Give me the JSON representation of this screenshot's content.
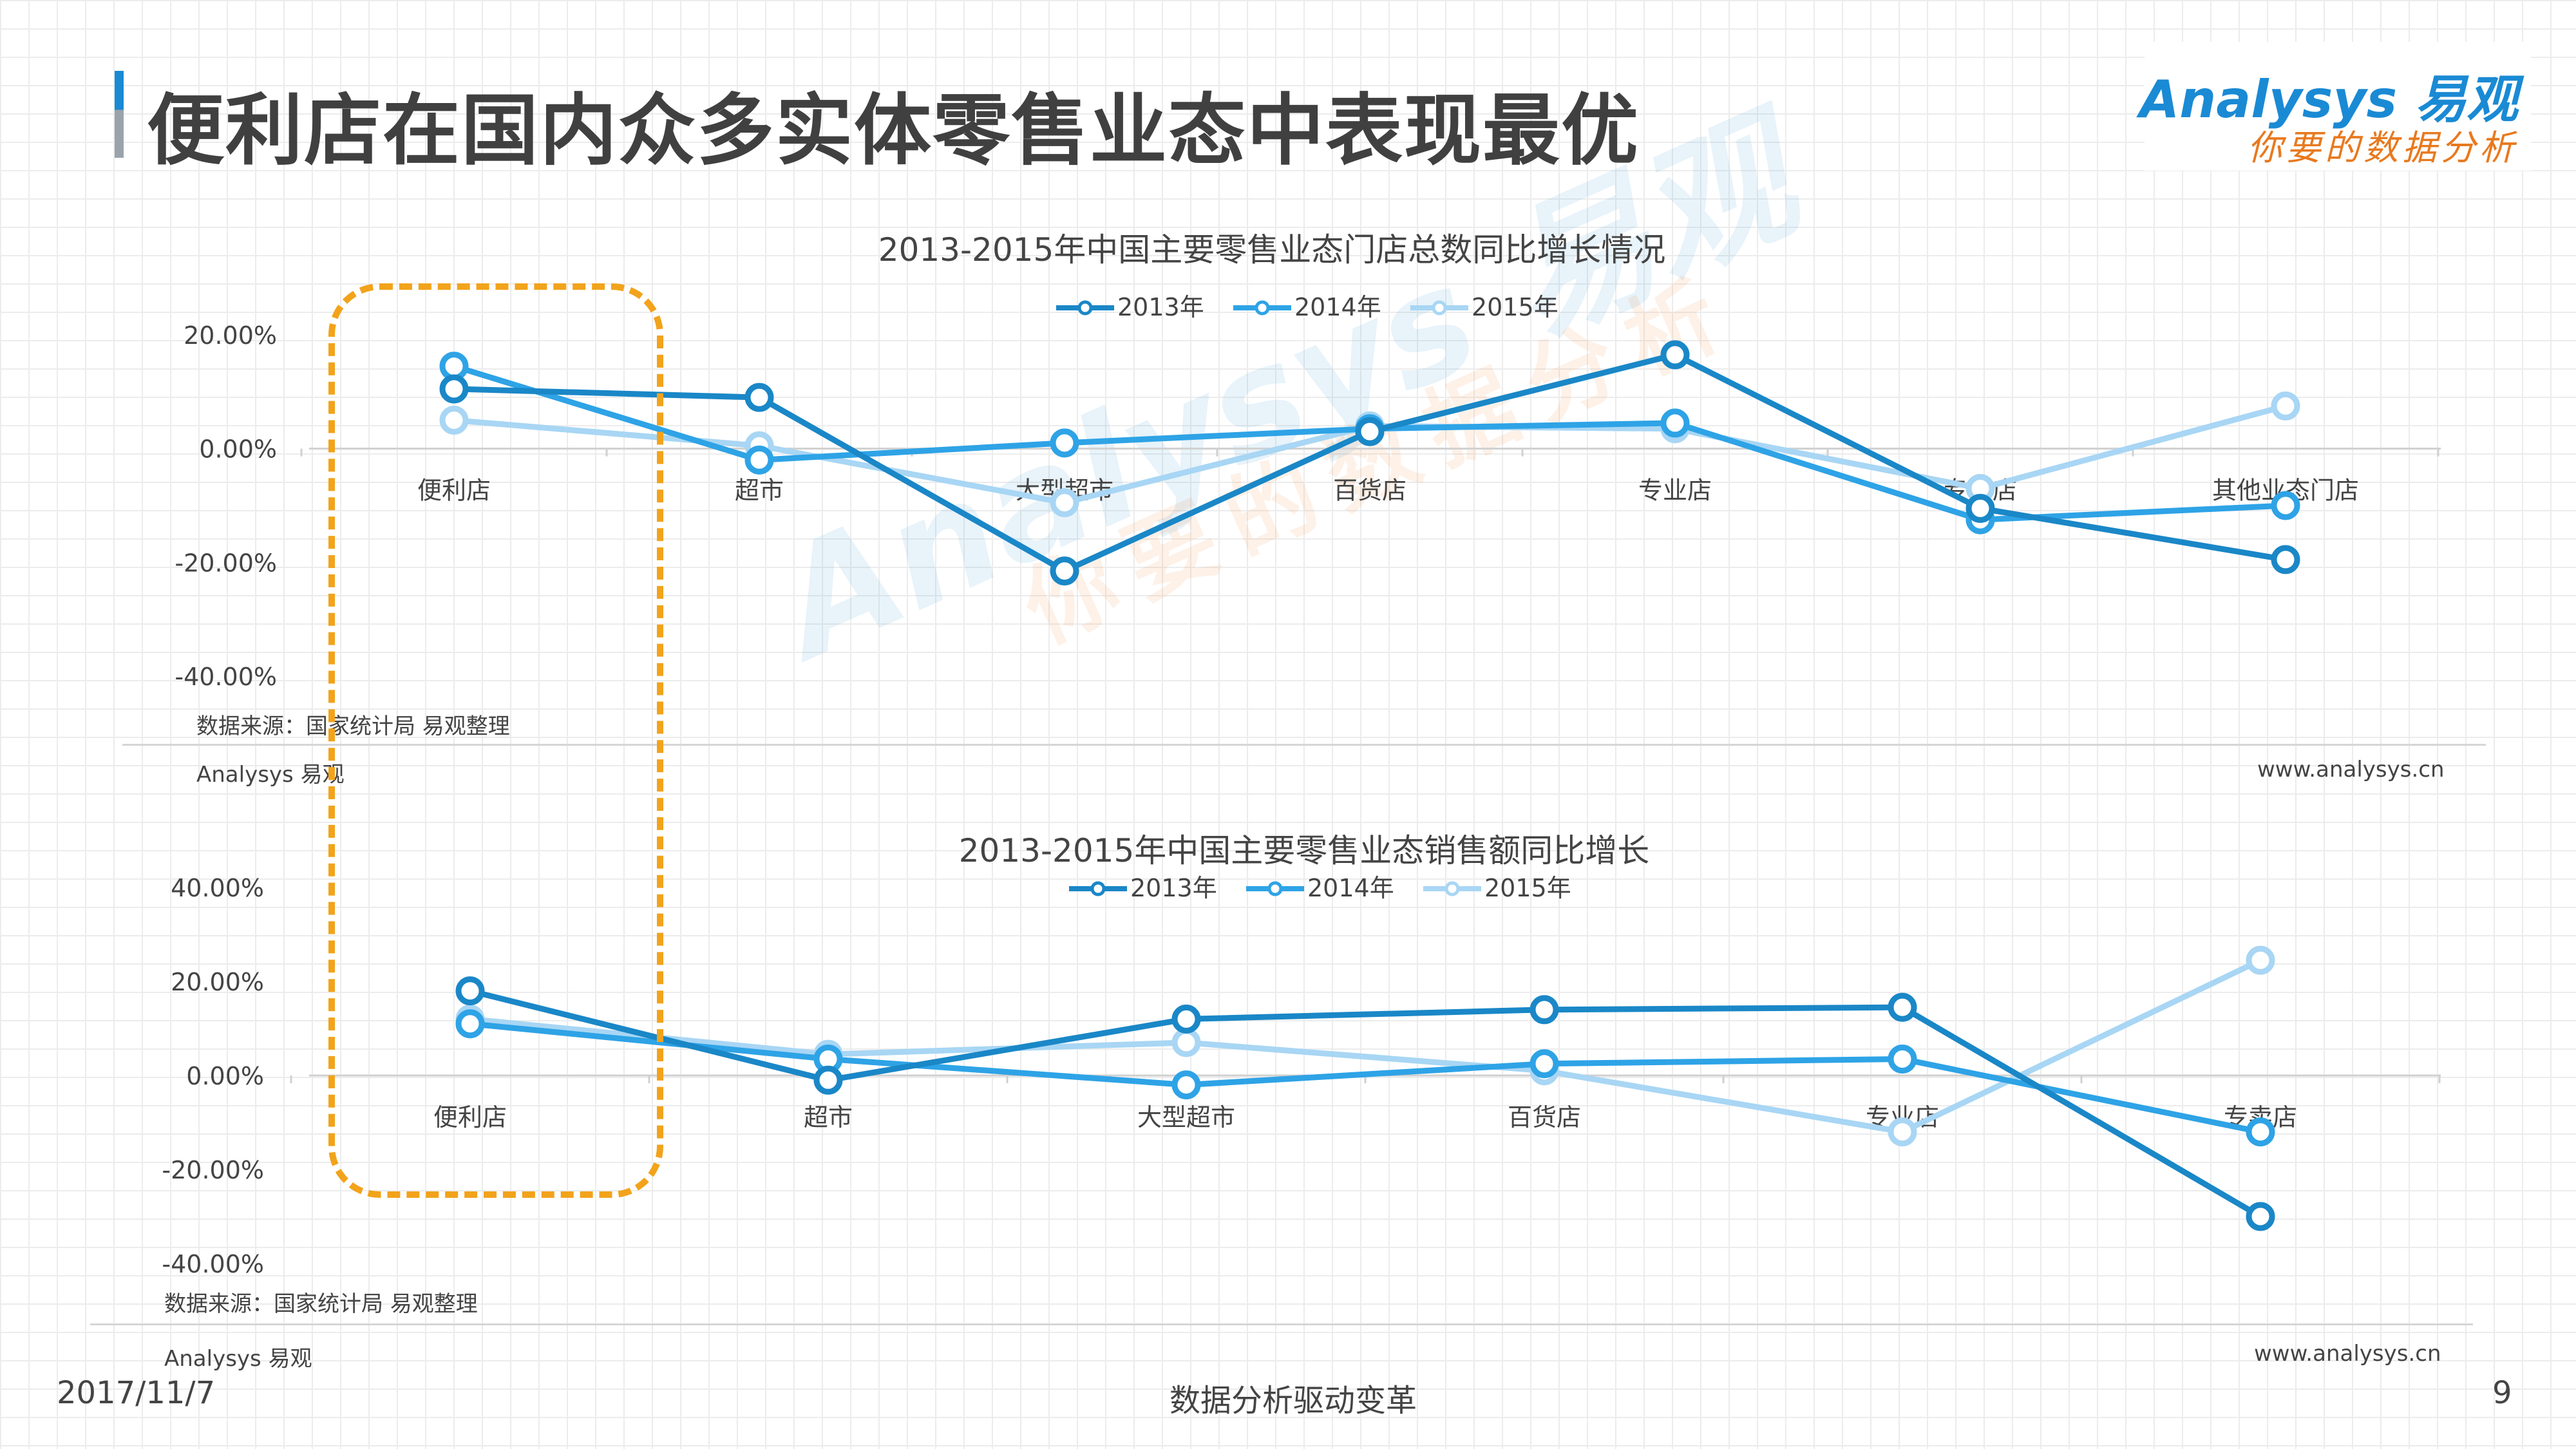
{
  "page": {
    "title": "便利店在国内众多实体零售业态中表现最优",
    "logo_text": "Analysys 易观",
    "logo_tagline_orange": "你",
    "logo_tagline_rest": "要的数据分析",
    "watermark_main": "Analysys 易观",
    "watermark_sub": "你要的数据分析",
    "footer_date": "2017/11/7",
    "footer_center": "数据分析驱动变革",
    "footer_page": "9",
    "accent_color": "#1a8ad4",
    "highlight_color": "#f2a31b",
    "series_colors": [
      "#1a87c7",
      "#2ea3e6",
      "#a8d6f4"
    ]
  },
  "charts": [
    {
      "source": "数据来源：国家统计局  易观整理",
      "brand_left": "Analysys 易观",
      "brand_right": "www.analysys.cn"
    },
    {
      "source": "数据来源：国家统计局  易观整理",
      "brand_left": "Analysys 易观",
      "brand_right": "www.analysys.cn"
    }
  ],
  "chart_data": [
    {
      "type": "line",
      "title": "2013-2015年中国主要零售业态门店总数同比增长情况",
      "categories": [
        "便利店",
        "超市",
        "大型超市",
        "百货店",
        "专业店",
        "专卖店",
        "其他业态门店"
      ],
      "series": [
        {
          "name": "2013年",
          "values": [
            10.5,
            9.0,
            -21.5,
            3.0,
            16.5,
            -10.5,
            -19.5
          ]
        },
        {
          "name": "2014年",
          "values": [
            14.5,
            -2.0,
            1.0,
            3.5,
            4.5,
            -12.5,
            -10.0
          ]
        },
        {
          "name": "2015年",
          "values": [
            5.0,
            0.5,
            -9.5,
            4.0,
            3.5,
            -7.0,
            7.5
          ]
        }
      ],
      "yticks": [
        "20.00%",
        "0.00%",
        "-20.00%",
        "-40.00%"
      ],
      "ylim": [
        -40,
        20
      ],
      "legend": "top"
    },
    {
      "type": "line",
      "title": "2013-2015年中国主要零售业态销售额同比增长",
      "categories": [
        "便利店",
        "超市",
        "大型超市",
        "百货店",
        "专业店",
        "专卖店"
      ],
      "series": [
        {
          "name": "2013年",
          "values": [
            18.0,
            -1.0,
            12.0,
            14.0,
            14.5,
            -30.0
          ]
        },
        {
          "name": "2014年",
          "values": [
            11.0,
            3.5,
            -2.0,
            2.5,
            3.5,
            -12.0
          ]
        },
        {
          "name": "2015年",
          "values": [
            12.0,
            4.5,
            7.0,
            1.0,
            -12.0,
            24.5
          ]
        }
      ],
      "yticks": [
        "40.00%",
        "20.00%",
        "0.00%",
        "-20.00%",
        "-40.00%"
      ],
      "ylim": [
        -40,
        40
      ],
      "legend": "top"
    }
  ]
}
